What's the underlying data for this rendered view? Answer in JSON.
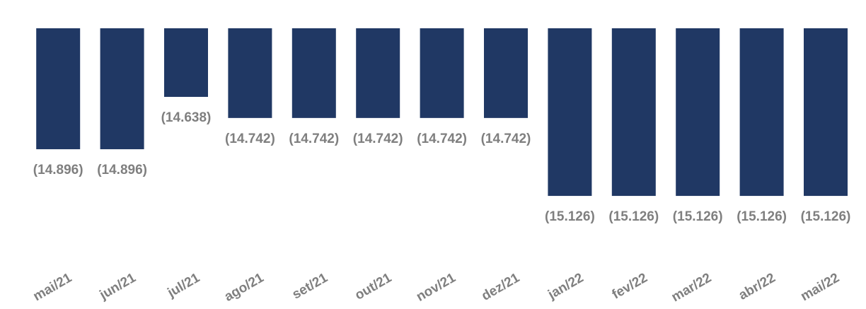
{
  "chart_data": {
    "type": "bar",
    "categories": [
      "mai/21",
      "jun/21",
      "jul/21",
      "ago/21",
      "set/21",
      "out/21",
      "nov/21",
      "dez/21",
      "jan/22",
      "fev/22",
      "mar/22",
      "abr/22",
      "mai/22"
    ],
    "values": [
      -14896,
      -14896,
      -14638,
      -14742,
      -14742,
      -14742,
      -14742,
      -14742,
      -15126,
      -15126,
      -15126,
      -15126,
      -15126
    ],
    "value_labels": [
      "(14.896)",
      "(14.896)",
      "(14.638)",
      "(14.742)",
      "(14.742)",
      "(14.742)",
      "(14.742)",
      "(14.742)",
      "(15.126)",
      "(15.126)",
      "(15.126)",
      "(15.126)",
      "(15.126)"
    ],
    "color": "#203864",
    "ylim": [
      -15300,
      -14300
    ]
  }
}
